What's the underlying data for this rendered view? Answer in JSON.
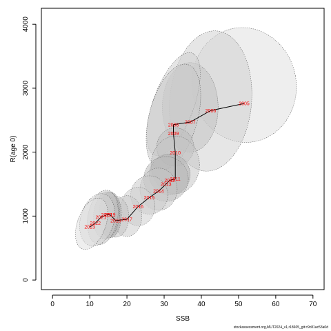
{
  "chart_data": {
    "type": "scatter",
    "xlabel": "SSB",
    "ylabel": "R(age 0)",
    "xlim": [
      -3,
      73
    ],
    "ylim": [
      -150,
      4250
    ],
    "x_ticks": [
      0,
      10,
      20,
      30,
      40,
      50,
      60,
      70
    ],
    "y_ticks": [
      0,
      1000,
      2000,
      3000,
      4000
    ],
    "grid": false,
    "points": [
      {
        "year": "2005",
        "x": 51.5,
        "y": 2760
      },
      {
        "year": "2006",
        "x": 42.5,
        "y": 2650
      },
      {
        "year": "2007",
        "x": 37.0,
        "y": 2470
      },
      {
        "year": "2008",
        "x": 32.5,
        "y": 2430
      },
      {
        "year": "2009",
        "x": 32.5,
        "y": 2290
      },
      {
        "year": "2010",
        "x": 33.0,
        "y": 1990
      },
      {
        "year": "2011",
        "x": 33.0,
        "y": 1580
      },
      {
        "year": "2012",
        "x": 31.5,
        "y": 1560
      },
      {
        "year": "2013",
        "x": 30.5,
        "y": 1500
      },
      {
        "year": "2014",
        "x": 28.5,
        "y": 1390
      },
      {
        "year": "2015",
        "x": 26.0,
        "y": 1290
      },
      {
        "year": "2016",
        "x": 23.0,
        "y": 1150
      },
      {
        "year": "2017",
        "x": 20.0,
        "y": 950
      },
      {
        "year": "2018",
        "x": 17.0,
        "y": 930
      },
      {
        "year": "2019",
        "x": 15.5,
        "y": 1020
      },
      {
        "year": "2020",
        "x": 14.5,
        "y": 1020
      },
      {
        "year": "2021",
        "x": 13.0,
        "y": 980
      },
      {
        "year": "2022",
        "x": 11.5,
        "y": 890
      },
      {
        "year": "2023",
        "x": 10.0,
        "y": 830
      }
    ],
    "ellipses": [
      {
        "cx": 51.5,
        "cy": 3050,
        "rx": 14.0,
        "ry": 900,
        "deg": -10,
        "shade": "#e0e0e0"
      },
      {
        "cx": 42.5,
        "cy": 2800,
        "rx": 11.0,
        "ry": 1100,
        "deg": 5,
        "shade": "#d2d2d2"
      },
      {
        "cx": 37.0,
        "cy": 2700,
        "rx": 7.5,
        "ry": 700,
        "deg": 0,
        "shade": "#c2c2c2"
      },
      {
        "cx": 32.5,
        "cy": 2750,
        "rx": 5.5,
        "ry": 850,
        "deg": 20,
        "shade": "#d0d0d0"
      },
      {
        "cx": 32.5,
        "cy": 2550,
        "rx": 6.5,
        "ry": 850,
        "deg": 15,
        "shade": "#c8c8c8"
      },
      {
        "cx": 33.0,
        "cy": 2080,
        "rx": 5.0,
        "ry": 300,
        "deg": 0,
        "shade": "#bdbdbd"
      },
      {
        "cx": 33.0,
        "cy": 1800,
        "rx": 6.5,
        "ry": 450,
        "deg": 0,
        "shade": "#c6c6c6"
      },
      {
        "cx": 31.5,
        "cy": 1650,
        "rx": 5.5,
        "ry": 320,
        "deg": 0,
        "shade": "#b0b0b0"
      },
      {
        "cx": 30.5,
        "cy": 1580,
        "rx": 6.0,
        "ry": 350,
        "deg": 0,
        "shade": "#bababa"
      },
      {
        "cx": 28.5,
        "cy": 1420,
        "rx": 5.0,
        "ry": 330,
        "deg": 0,
        "shade": "#c4c4c4"
      },
      {
        "cx": 26.0,
        "cy": 1330,
        "rx": 5.0,
        "ry": 300,
        "deg": 0,
        "shade": "#cacaca"
      },
      {
        "cx": 23.0,
        "cy": 1150,
        "rx": 4.5,
        "ry": 300,
        "deg": 0,
        "shade": "#d0d0d0"
      },
      {
        "cx": 20.0,
        "cy": 1000,
        "rx": 4.0,
        "ry": 320,
        "deg": 0,
        "shade": "#cccccc"
      },
      {
        "cx": 17.0,
        "cy": 990,
        "rx": 3.5,
        "ry": 320,
        "deg": 0,
        "shade": "#c4c4c4"
      },
      {
        "cx": 15.5,
        "cy": 1020,
        "rx": 3.0,
        "ry": 360,
        "deg": 0,
        "shade": "#a8a8a8"
      },
      {
        "cx": 14.5,
        "cy": 1010,
        "rx": 3.5,
        "ry": 370,
        "deg": 5,
        "shade": "#b4b4b4"
      },
      {
        "cx": 13.5,
        "cy": 980,
        "rx": 4.0,
        "ry": 430,
        "deg": 10,
        "shade": "#c4c4c4"
      },
      {
        "cx": 12.0,
        "cy": 940,
        "rx": 4.5,
        "ry": 420,
        "deg": 15,
        "shade": "#d4d4d4"
      },
      {
        "cx": 10.5,
        "cy": 880,
        "rx": 3.8,
        "ry": 420,
        "deg": 20,
        "shade": "#e0e0e0"
      }
    ]
  },
  "footer": {
    "text": "stockassessment.org,MUT2024_v1,r18605_git:c9c81ac53a0d"
  },
  "colors": {
    "line": "#000000",
    "label": "#ff0000",
    "ellipse_border": "#555555"
  }
}
